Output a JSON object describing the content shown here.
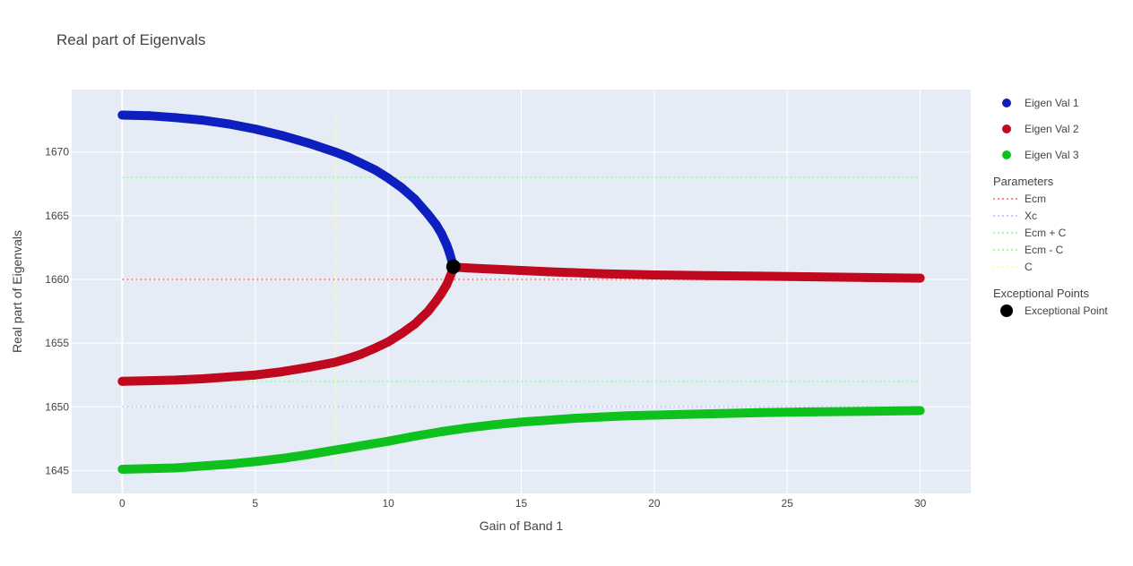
{
  "chart_data": {
    "type": "scatter",
    "title": "Real part of Eigenvals",
    "xlabel": "Gain of Band 1",
    "ylabel": "Real part of Eigenvals",
    "xlim": [
      -1.9,
      31.9
    ],
    "ylim": [
      1643.2,
      1674.9
    ],
    "x_ticks": [
      0,
      5,
      10,
      15,
      20,
      25,
      30
    ],
    "y_ticks": [
      1645,
      1650,
      1655,
      1660,
      1665,
      1670
    ],
    "grid": true,
    "legend_position": "right",
    "colors": {
      "plot_bg": "#e5ecf6",
      "grid": "#ffffff",
      "eig1": "#0d1fbf",
      "eig2": "#c0081e",
      "eig3": "#0ec11c",
      "ecm": "#ff8a8a",
      "xc": "#c8c8ff",
      "ecm_plus_c": "#9effa6",
      "ecm_minus_c": "#9effa6",
      "c": "#ffff9a",
      "ep": "#000000"
    },
    "series": [
      {
        "name": "Eigen Val 1",
        "color": "#0d1fbf",
        "points": [
          [
            0,
            1672.9
          ],
          [
            1,
            1672.85
          ],
          [
            2,
            1672.7
          ],
          [
            3,
            1672.5
          ],
          [
            4,
            1672.2
          ],
          [
            5,
            1671.8
          ],
          [
            6,
            1671.3
          ],
          [
            7,
            1670.7
          ],
          [
            8,
            1670.0
          ],
          [
            8.5,
            1669.6
          ],
          [
            9,
            1669.1
          ],
          [
            9.5,
            1668.6
          ],
          [
            10,
            1667.95
          ],
          [
            10.5,
            1667.2
          ],
          [
            11,
            1666.3
          ],
          [
            11.5,
            1665.1
          ],
          [
            11.8,
            1664.3
          ],
          [
            12,
            1663.6
          ],
          [
            12.2,
            1662.7
          ],
          [
            12.3,
            1662.1
          ],
          [
            12.4,
            1661.4
          ],
          [
            12.45,
            1661.0
          ]
        ]
      },
      {
        "name": "Eigen Val 2",
        "color": "#c0081e",
        "points": [
          [
            0,
            1652.0
          ],
          [
            1,
            1652.05
          ],
          [
            2,
            1652.1
          ],
          [
            3,
            1652.2
          ],
          [
            4,
            1652.35
          ],
          [
            5,
            1652.5
          ],
          [
            6,
            1652.75
          ],
          [
            7,
            1653.1
          ],
          [
            8,
            1653.5
          ],
          [
            8.5,
            1653.8
          ],
          [
            9,
            1654.15
          ],
          [
            9.5,
            1654.6
          ],
          [
            10,
            1655.1
          ],
          [
            10.5,
            1655.75
          ],
          [
            11,
            1656.5
          ],
          [
            11.5,
            1657.5
          ],
          [
            11.8,
            1658.3
          ],
          [
            12,
            1658.9
          ],
          [
            12.2,
            1659.6
          ],
          [
            12.3,
            1660.1
          ],
          [
            12.4,
            1660.6
          ],
          [
            12.45,
            1661.0
          ],
          [
            12.6,
            1660.95
          ],
          [
            13,
            1660.9
          ],
          [
            14,
            1660.8
          ],
          [
            15,
            1660.7
          ],
          [
            16,
            1660.6
          ],
          [
            18,
            1660.45
          ],
          [
            20,
            1660.35
          ],
          [
            22,
            1660.3
          ],
          [
            24,
            1660.25
          ],
          [
            26,
            1660.2
          ],
          [
            28,
            1660.15
          ],
          [
            30,
            1660.1
          ]
        ]
      },
      {
        "name": "Eigen Val 3",
        "color": "#0ec11c",
        "points": [
          [
            0,
            1645.1
          ],
          [
            1,
            1645.15
          ],
          [
            2,
            1645.2
          ],
          [
            3,
            1645.35
          ],
          [
            4,
            1645.5
          ],
          [
            5,
            1645.7
          ],
          [
            6,
            1645.95
          ],
          [
            7,
            1646.25
          ],
          [
            8,
            1646.6
          ],
          [
            9,
            1646.95
          ],
          [
            10,
            1647.3
          ],
          [
            11,
            1647.7
          ],
          [
            12,
            1648.05
          ],
          [
            13,
            1648.35
          ],
          [
            14,
            1648.6
          ],
          [
            15,
            1648.8
          ],
          [
            16,
            1648.95
          ],
          [
            17,
            1649.1
          ],
          [
            18,
            1649.2
          ],
          [
            19,
            1649.3
          ],
          [
            20,
            1649.35
          ],
          [
            22,
            1649.45
          ],
          [
            24,
            1649.55
          ],
          [
            26,
            1649.6
          ],
          [
            28,
            1649.65
          ],
          [
            30,
            1649.7
          ]
        ]
      }
    ],
    "parameter_lines": [
      {
        "name": "Ecm",
        "type": "horizontal",
        "value": 1660,
        "x_range": [
          0,
          30
        ],
        "color": "#ff8a8a"
      },
      {
        "name": "Xc",
        "type": "horizontal",
        "value": 1650,
        "x_range": [
          0,
          30
        ],
        "color": "#c8c8ff"
      },
      {
        "name": "Ecm + C",
        "type": "horizontal",
        "value": 1668,
        "x_range": [
          0,
          30
        ],
        "color": "#9effa6"
      },
      {
        "name": "Ecm - C",
        "type": "horizontal",
        "value": 1652,
        "x_range": [
          0,
          30
        ],
        "color": "#9effa6"
      },
      {
        "name": "C",
        "type": "vertical",
        "value": 8,
        "y_range": [
          1645,
          1673
        ],
        "color": "#ffff9a"
      }
    ],
    "exceptional_points": [
      {
        "name": "Exceptional Point",
        "x": 12.45,
        "y": 1661.0,
        "color": "#000000"
      }
    ],
    "legend": {
      "groups": [
        {
          "title": "",
          "items": [
            "Eigen Val 1",
            "Eigen Val 2",
            "Eigen Val 3"
          ]
        },
        {
          "title": "Parameters",
          "items": [
            "Ecm",
            "Xc",
            "Ecm + C",
            "Ecm - C",
            "C"
          ]
        },
        {
          "title": "Exceptional Points",
          "items": [
            "Exceptional Point"
          ]
        }
      ]
    }
  }
}
